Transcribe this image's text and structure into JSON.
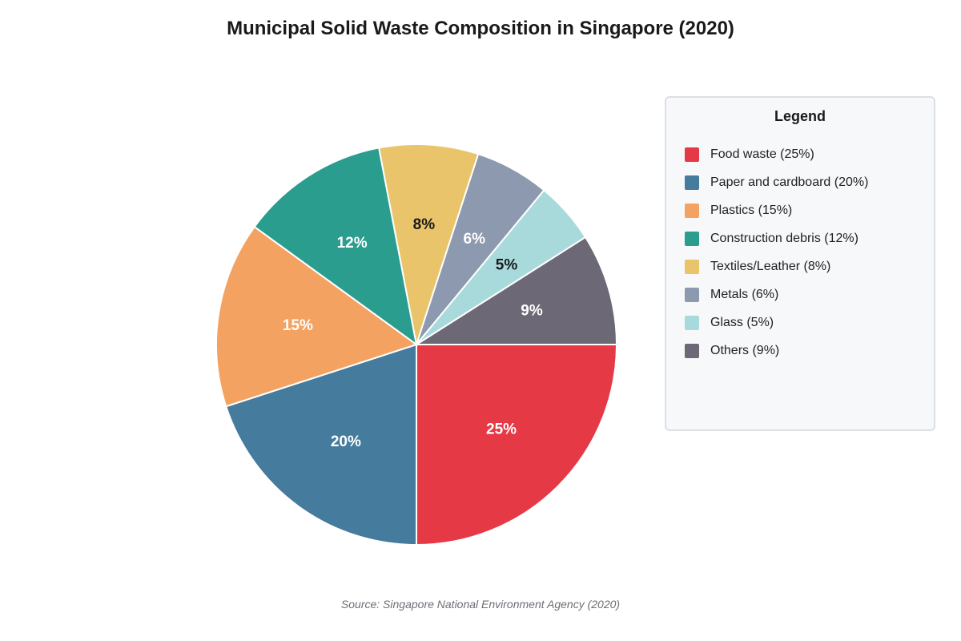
{
  "chart_data": {
    "type": "pie",
    "title": "Municipal Solid Waste Composition in Singapore (2020)",
    "slices": [
      {
        "label": "Food waste",
        "value": 25,
        "value_label": "25%",
        "legend": "Food waste (25%)",
        "color": "#e63946",
        "label_color": "#ffffff"
      },
      {
        "label": "Paper and cardboard",
        "value": 20,
        "value_label": "20%",
        "legend": "Paper and cardboard (20%)",
        "color": "#457b9d",
        "label_color": "#ffffff"
      },
      {
        "label": "Plastics",
        "value": 15,
        "value_label": "15%",
        "legend": "Plastics (15%)",
        "color": "#f4a261",
        "label_color": "#ffffff"
      },
      {
        "label": "Construction debris",
        "value": 12,
        "value_label": "12%",
        "legend": "Construction debris (12%)",
        "color": "#2a9d8f",
        "label_color": "#ffffff"
      },
      {
        "label": "Textiles/Leather",
        "value": 8,
        "value_label": "8%",
        "legend": "Textiles/Leather (8%)",
        "color": "#e9c46a",
        "label_color": "#1a1a1a"
      },
      {
        "label": "Metals",
        "value": 6,
        "value_label": "6%",
        "legend": "Metals (6%)",
        "color": "#8d99ae",
        "label_color": "#ffffff"
      },
      {
        "label": "Glass",
        "value": 5,
        "value_label": "5%",
        "legend": "Glass (5%)",
        "color": "#a8dadc",
        "label_color": "#1a1a1a"
      },
      {
        "label": "Others",
        "value": 9,
        "value_label": "9%",
        "legend": "Others (9%)",
        "color": "#6d6875",
        "label_color": "#ffffff"
      }
    ],
    "legend_title": "Legend",
    "legend_position": "right",
    "source": "Source: Singapore National Environment Agency (2020)"
  }
}
